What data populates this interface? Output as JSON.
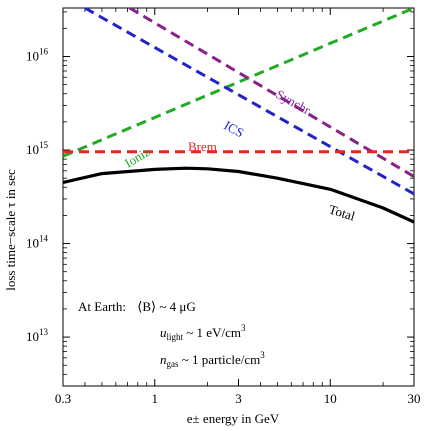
{
  "chart_data": {
    "type": "line",
    "xscale": "log",
    "yscale": "log",
    "xlim": [
      0.3,
      30
    ],
    "ylim": [
      3000000000000.0,
      3.3e+16
    ],
    "xlabel": "e± energy in GeV",
    "ylabel": "loss time−scale τ in sec",
    "x_ticks": [
      {
        "value": 0.3,
        "label": "0.3"
      },
      {
        "value": 1,
        "label": "1"
      },
      {
        "value": 3,
        "label": "3"
      },
      {
        "value": 10,
        "label": "10"
      },
      {
        "value": 30,
        "label": "30"
      }
    ],
    "y_ticks": [
      {
        "value": 10000000000000.0,
        "base": "10",
        "exp": "13"
      },
      {
        "value": 100000000000000.0,
        "base": "10",
        "exp": "14"
      },
      {
        "value": 1000000000000000.0,
        "base": "10",
        "exp": "15"
      },
      {
        "value": 1e+16,
        "base": "10",
        "exp": "16"
      }
    ],
    "series": [
      {
        "name": "Ioniz",
        "color": "#22aa22",
        "dash": true,
        "points": [
          [
            0.3,
            860000000000000.0
          ],
          [
            30,
            3.3e+16
          ]
        ]
      },
      {
        "name": "ICS",
        "color": "#2222cc",
        "dash": true,
        "points": [
          [
            0.4,
            3.3e+16
          ],
          [
            30,
            340000000000000.0
          ]
        ]
      },
      {
        "name": "Synchr",
        "color": "#882288",
        "dash": true,
        "points": [
          [
            0.72,
            3.3e+16
          ],
          [
            30,
            520000000000000.0
          ]
        ]
      },
      {
        "name": "Brem",
        "color": "#ee2222",
        "dash": true,
        "points": [
          [
            0.3,
            960000000000000.0
          ],
          [
            30,
            960000000000000.0
          ]
        ]
      },
      {
        "name": "Total",
        "color": "#000000",
        "dash": false,
        "points": [
          [
            0.3,
            450000000000000.0
          ],
          [
            0.5,
            560000000000000.0
          ],
          [
            1,
            620000000000000.0
          ],
          [
            1.5,
            640000000000000.0
          ],
          [
            2,
            630000000000000.0
          ],
          [
            3,
            590000000000000.0
          ],
          [
            5,
            500000000000000.0
          ],
          [
            10,
            380000000000000.0
          ],
          [
            20,
            240000000000000.0
          ],
          [
            30,
            170000000000000.0
          ]
        ]
      }
    ],
    "annotation": {
      "line1_prefix": "At Earth:",
      "line1_value": "⟨B⟩ ~ 4 μG",
      "line2_var": "u",
      "line2_sub": "light",
      "line2_rest": " ~ 1 eV/cm",
      "line2_sup": "3",
      "line3_var": "n",
      "line3_sub": "gas",
      "line3_rest": " ~ 1 particle/cm",
      "line3_sup": "3"
    }
  }
}
